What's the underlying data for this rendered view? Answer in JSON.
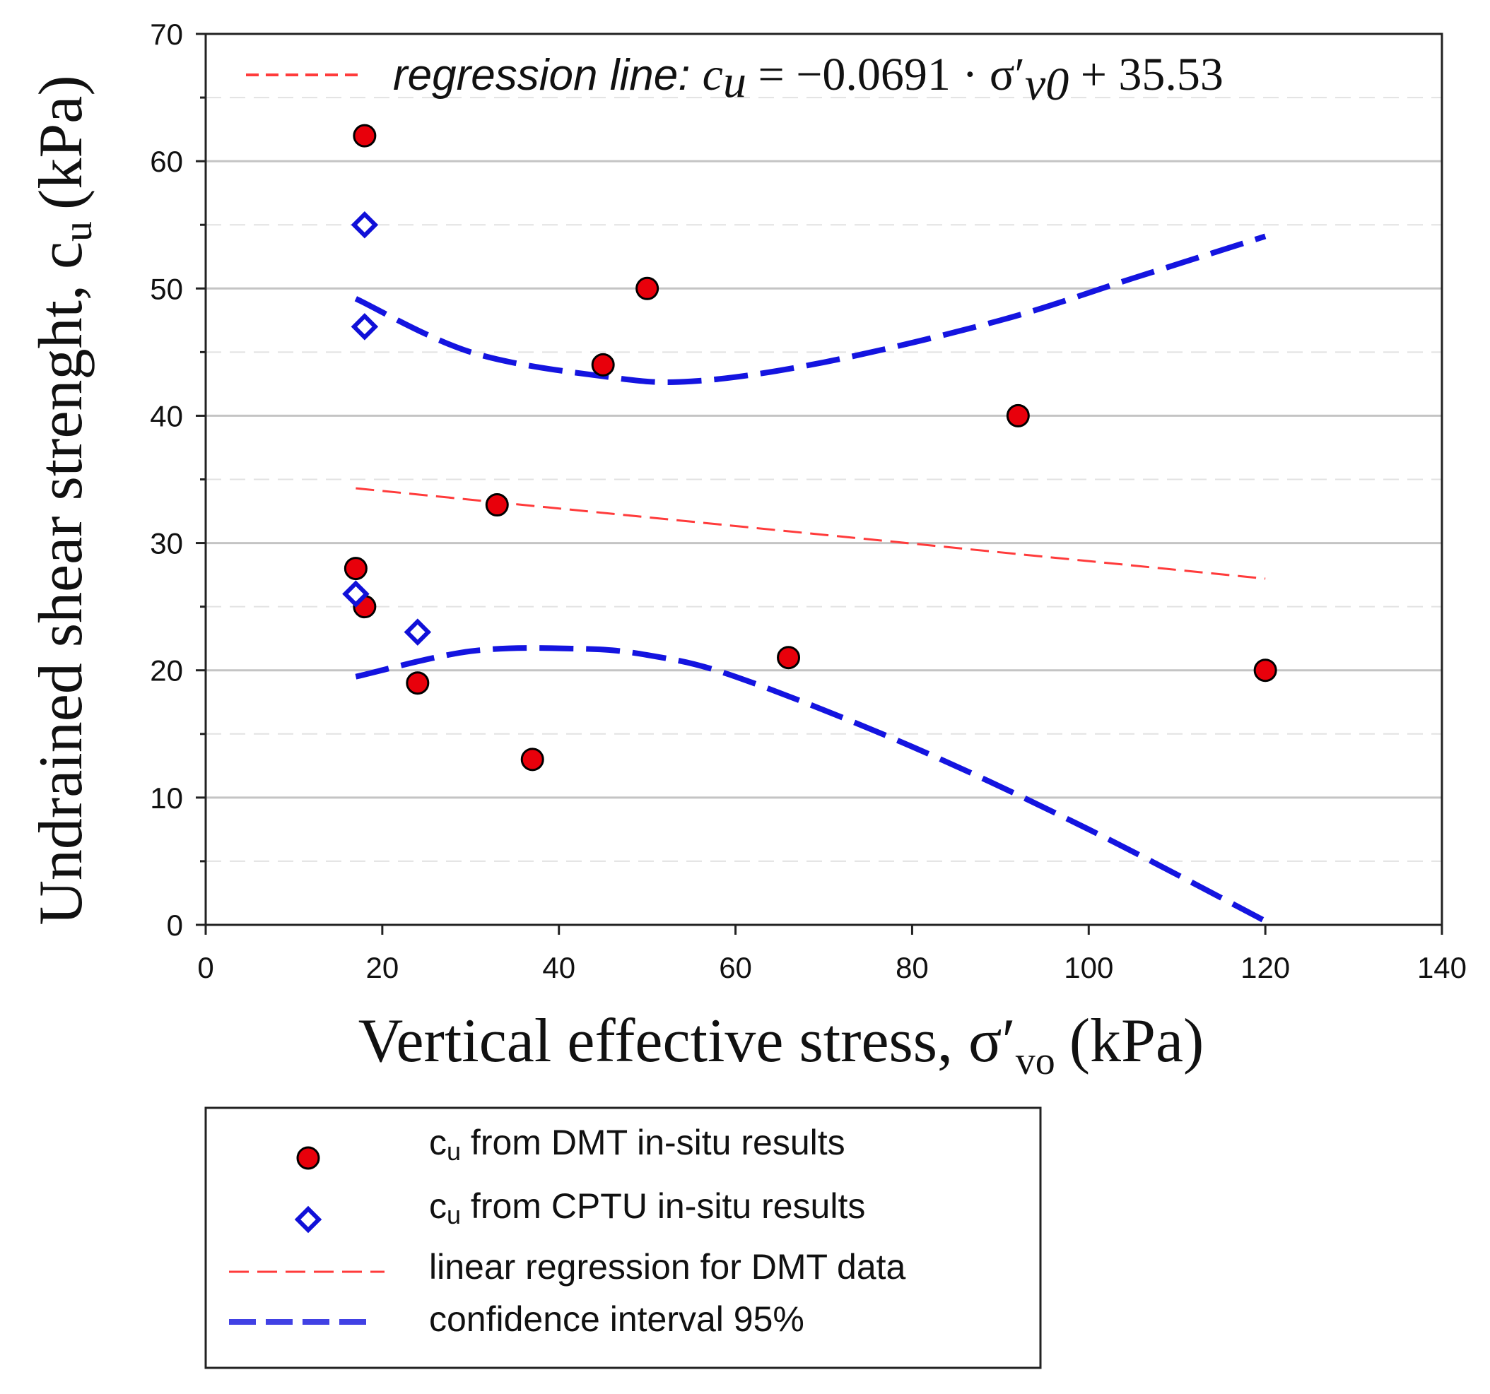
{
  "chart_data": {
    "type": "scatter",
    "xlabel": "Vertical effective stress, σ′",
    "xlabel_sub": "vo",
    "xlabel_unit": "(kPa)",
    "ylabel": "Undrained shear strenght, c",
    "ylabel_sub": "u",
    "ylabel_unit": "(kPa)",
    "xlim": [
      0,
      140
    ],
    "ylim": [
      0,
      70
    ],
    "xticks": [
      "0",
      "20",
      "40",
      "60",
      "80",
      "100",
      "120",
      "140"
    ],
    "yticks": [
      "0",
      "10",
      "20",
      "30",
      "40",
      "50",
      "60",
      "70"
    ],
    "grid": true,
    "annotation": {
      "prefix": "regression line: ",
      "lhs_main": "c",
      "lhs_sub": "u",
      "eq_part1": " = −0.0691 · σ′",
      "eq_sub": "v0",
      "eq_part2": " + 35.53"
    },
    "series": [
      {
        "name": "DMT",
        "type": "scatter",
        "marker": "circle",
        "color": "#e8000b",
        "x": [
          18,
          17,
          18,
          24,
          33,
          37,
          45,
          50,
          66,
          92,
          120
        ],
        "y": [
          62,
          28,
          25,
          19,
          33,
          13,
          44,
          50,
          21,
          40,
          20
        ]
      },
      {
        "name": "CPTU",
        "type": "scatter",
        "marker": "diamond",
        "color": "#1010d8",
        "x": [
          18,
          18,
          17,
          24
        ],
        "y": [
          55,
          47,
          26,
          23
        ]
      },
      {
        "name": "regression",
        "type": "line",
        "style": "dashed-thin",
        "color": "#ff3b3b",
        "x": [
          17,
          120
        ],
        "y": [
          34.3,
          27.2
        ]
      },
      {
        "name": "ci-upper",
        "type": "line",
        "style": "dashed-thick",
        "color": "#1414e0",
        "x": [
          17,
          30,
          45,
          55,
          70,
          90,
          105,
          120
        ],
        "y": [
          49.2,
          45.0,
          43.1,
          42.7,
          44.2,
          47.5,
          50.8,
          54.1
        ]
      },
      {
        "name": "ci-lower",
        "type": "line",
        "style": "dashed-thick",
        "color": "#1414e0",
        "x": [
          17,
          30,
          42,
          50,
          60,
          80,
          100,
          120
        ],
        "y": [
          19.5,
          21.5,
          21.7,
          21.2,
          19.5,
          14.0,
          7.5,
          0.3
        ]
      }
    ],
    "legend": {
      "position": "below",
      "items": [
        {
          "marker": "circle",
          "pre": "c",
          "sub": "u",
          "post": " from DMT in-situ results"
        },
        {
          "marker": "diamond",
          "pre": "c",
          "sub": "u",
          "post": " from CPTU in-situ results"
        },
        {
          "marker": "thin-dash",
          "pre": "",
          "sub": "",
          "post": "linear regression for DMT data"
        },
        {
          "marker": "thick-dash",
          "pre": "",
          "sub": "",
          "post": "confidence interval 95%"
        }
      ]
    }
  }
}
